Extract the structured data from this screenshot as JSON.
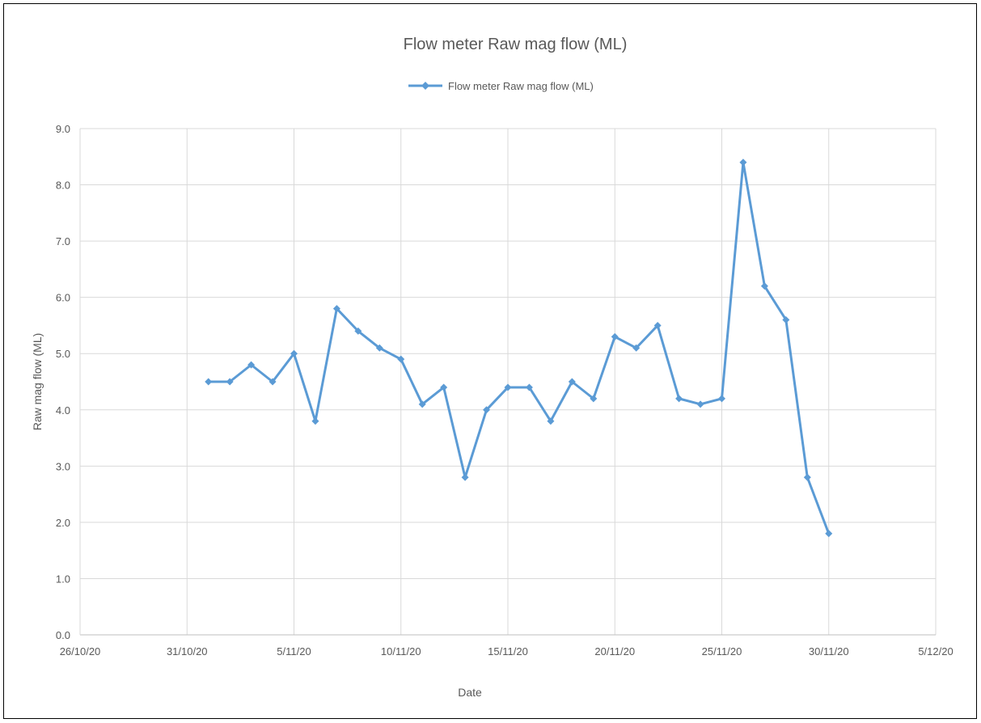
{
  "chart_data": {
    "type": "line",
    "title": "Flow meter Raw mag flow (ML)",
    "xlabel": "Date",
    "ylabel": "Raw mag flow (ML)",
    "ylim": [
      0,
      9
    ],
    "yticks": [
      "0.0",
      "1.0",
      "2.0",
      "3.0",
      "4.0",
      "5.0",
      "6.0",
      "7.0",
      "8.0",
      "9.0"
    ],
    "xlim": [
      "26/10/20",
      "5/12/20"
    ],
    "xticks": [
      "26/10/20",
      "31/10/20",
      "5/11/20",
      "10/11/20",
      "15/11/20",
      "20/11/20",
      "25/11/20",
      "30/11/20",
      "5/12/20"
    ],
    "grid": true,
    "legend_position": "top",
    "series": [
      {
        "name": "Flow meter Raw mag flow (ML)",
        "color": "#5b9bd5",
        "marker": "diamond",
        "points": [
          {
            "x": "1/11/20",
            "y": 4.5
          },
          {
            "x": "2/11/20",
            "y": 4.5
          },
          {
            "x": "3/11/20",
            "y": 4.8
          },
          {
            "x": "4/11/20",
            "y": 4.5
          },
          {
            "x": "5/11/20",
            "y": 5.0
          },
          {
            "x": "6/11/20",
            "y": 3.8
          },
          {
            "x": "7/11/20",
            "y": 5.8
          },
          {
            "x": "8/11/20",
            "y": 5.4
          },
          {
            "x": "9/11/20",
            "y": 5.1
          },
          {
            "x": "10/11/20",
            "y": 4.9
          },
          {
            "x": "11/11/20",
            "y": 4.1
          },
          {
            "x": "12/11/20",
            "y": 4.4
          },
          {
            "x": "13/11/20",
            "y": 2.8
          },
          {
            "x": "14/11/20",
            "y": 4.0
          },
          {
            "x": "15/11/20",
            "y": 4.4
          },
          {
            "x": "16/11/20",
            "y": 4.4
          },
          {
            "x": "17/11/20",
            "y": 3.8
          },
          {
            "x": "18/11/20",
            "y": 4.5
          },
          {
            "x": "19/11/20",
            "y": 4.2
          },
          {
            "x": "20/11/20",
            "y": 5.3
          },
          {
            "x": "21/11/20",
            "y": 5.1
          },
          {
            "x": "22/11/20",
            "y": 5.5
          },
          {
            "x": "23/11/20",
            "y": 4.2
          },
          {
            "x": "24/11/20",
            "y": 4.1
          },
          {
            "x": "25/11/20",
            "y": 4.2
          },
          {
            "x": "26/11/20",
            "y": 8.4
          },
          {
            "x": "27/11/20",
            "y": 6.2
          },
          {
            "x": "28/11/20",
            "y": 5.6
          },
          {
            "x": "29/11/20",
            "y": 2.8
          },
          {
            "x": "30/11/20",
            "y": 1.8
          }
        ]
      }
    ]
  }
}
